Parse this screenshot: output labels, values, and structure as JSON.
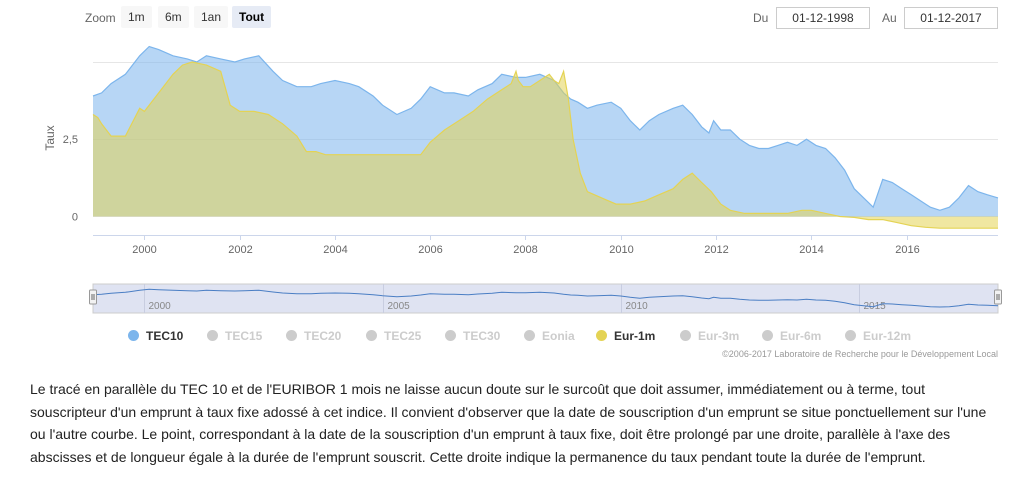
{
  "toolbar": {
    "zoom_label": "Zoom",
    "zoom_buttons": [
      {
        "label": "1m",
        "active": false
      },
      {
        "label": "6m",
        "active": false
      },
      {
        "label": "1an",
        "active": false
      },
      {
        "label": "Tout",
        "active": true
      }
    ],
    "from_label": "Du",
    "from_value": "01-12-1998",
    "to_label": "Au",
    "to_value": "01-12-2017"
  },
  "chart_data": {
    "type": "area",
    "title": "",
    "xlabel": "",
    "ylabel": "Taux",
    "xlim": [
      1998.92,
      2017.92
    ],
    "ylim": [
      -0.6,
      5.55
    ],
    "yticks": [
      0,
      2.5
    ],
    "ytick_labels": [
      "0",
      "2,5"
    ],
    "xticks": [
      2000,
      2002,
      2004,
      2006,
      2008,
      2010,
      2012,
      2014,
      2016
    ],
    "grid": true,
    "series": [
      {
        "name": "TEC10",
        "color": "#7cb5ec",
        "x": [
          1998.92,
          1999.1,
          1999.3,
          1999.6,
          1999.9,
          2000.1,
          2000.3,
          2000.6,
          2000.9,
          2001.1,
          2001.3,
          2001.6,
          2001.9,
          2002.1,
          2002.4,
          2002.7,
          2002.9,
          2003.2,
          2003.5,
          2003.7,
          2004.0,
          2004.3,
          2004.5,
          2004.8,
          2005.0,
          2005.3,
          2005.6,
          2005.8,
          2006.0,
          2006.3,
          2006.5,
          2006.8,
          2007.0,
          2007.3,
          2007.5,
          2007.8,
          2008.0,
          2008.3,
          2008.6,
          2008.8,
          2008.95,
          2009.1,
          2009.3,
          2009.5,
          2009.8,
          2010.0,
          2010.2,
          2010.4,
          2010.6,
          2010.8,
          2011.1,
          2011.3,
          2011.5,
          2011.7,
          2011.85,
          2011.95,
          2012.1,
          2012.3,
          2012.5,
          2012.7,
          2012.9,
          2013.1,
          2013.3,
          2013.5,
          2013.7,
          2013.9,
          2014.1,
          2014.3,
          2014.5,
          2014.7,
          2014.9,
          2015.1,
          2015.3,
          2015.5,
          2015.7,
          2015.9,
          2016.1,
          2016.3,
          2016.5,
          2016.7,
          2016.9,
          2017.1,
          2017.3,
          2017.5,
          2017.7,
          2017.92
        ],
        "values": [
          3.9,
          4.0,
          4.3,
          4.6,
          5.2,
          5.5,
          5.4,
          5.2,
          5.1,
          5.0,
          5.2,
          5.1,
          5.0,
          5.1,
          5.2,
          4.7,
          4.4,
          4.2,
          4.2,
          4.3,
          4.4,
          4.3,
          4.2,
          3.9,
          3.6,
          3.3,
          3.5,
          3.8,
          4.2,
          4.0,
          4.0,
          3.9,
          4.1,
          4.3,
          4.6,
          4.5,
          4.5,
          4.6,
          4.4,
          4.0,
          3.8,
          3.7,
          3.5,
          3.6,
          3.7,
          3.5,
          3.1,
          2.8,
          3.1,
          3.3,
          3.5,
          3.6,
          3.3,
          2.9,
          2.7,
          3.1,
          2.8,
          2.8,
          2.5,
          2.3,
          2.2,
          2.2,
          2.3,
          2.4,
          2.3,
          2.5,
          2.3,
          2.2,
          1.9,
          1.5,
          0.9,
          0.6,
          0.3,
          1.2,
          1.1,
          0.9,
          0.7,
          0.5,
          0.3,
          0.2,
          0.3,
          0.6,
          1.0,
          0.8,
          0.7,
          0.6
        ]
      },
      {
        "name": "Eur-1m",
        "color": "#e4d354",
        "x": [
          1998.92,
          1999.02,
          1999.1,
          1999.3,
          1999.6,
          1999.8,
          1999.9,
          2000.0,
          2000.3,
          2000.6,
          2000.8,
          2001.0,
          2001.3,
          2001.6,
          2001.8,
          2002.0,
          2002.3,
          2002.6,
          2002.9,
          2003.2,
          2003.4,
          2003.6,
          2003.8,
          2004.0,
          2004.5,
          2005.0,
          2005.5,
          2005.8,
          2006.0,
          2006.3,
          2006.6,
          2006.9,
          2007.2,
          2007.5,
          2007.7,
          2007.8,
          2007.85,
          2007.95,
          2008.1,
          2008.3,
          2008.5,
          2008.6,
          2008.7,
          2008.8,
          2008.9,
          2009.0,
          2009.15,
          2009.3,
          2009.6,
          2009.9,
          2010.2,
          2010.5,
          2010.8,
          2011.1,
          2011.3,
          2011.5,
          2011.7,
          2011.9,
          2012.1,
          2012.3,
          2012.6,
          2012.9,
          2013.2,
          2013.5,
          2013.8,
          2014.0,
          2014.3,
          2014.6,
          2014.9,
          2015.2,
          2015.5,
          2015.8,
          2016.1,
          2016.4,
          2016.7,
          2017.0,
          2017.3,
          2017.6,
          2017.92
        ],
        "values": [
          3.3,
          3.2,
          3.0,
          2.6,
          2.6,
          3.2,
          3.5,
          3.4,
          4.0,
          4.6,
          4.9,
          5.0,
          4.9,
          4.7,
          3.6,
          3.4,
          3.4,
          3.3,
          3.0,
          2.6,
          2.1,
          2.1,
          2.0,
          2.0,
          2.0,
          2.0,
          2.0,
          2.0,
          2.4,
          2.8,
          3.1,
          3.4,
          3.8,
          4.1,
          4.3,
          4.7,
          4.4,
          4.2,
          4.2,
          4.4,
          4.6,
          4.4,
          4.3,
          4.7,
          3.8,
          2.5,
          1.4,
          0.8,
          0.6,
          0.4,
          0.4,
          0.5,
          0.7,
          0.9,
          1.2,
          1.4,
          1.1,
          0.8,
          0.4,
          0.2,
          0.1,
          0.1,
          0.1,
          0.1,
          0.2,
          0.2,
          0.1,
          0.0,
          -0.03,
          -0.1,
          -0.1,
          -0.2,
          -0.3,
          -0.35,
          -0.38,
          -0.38,
          -0.38,
          -0.38,
          -0.38
        ]
      }
    ]
  },
  "navigator": {
    "year_labels": [
      "2000",
      "2005",
      "2010",
      "2015"
    ]
  },
  "legend": [
    {
      "label": "TEC10",
      "color": "#7cb5ec",
      "active": true
    },
    {
      "label": "TEC15",
      "color": "#cccccc",
      "active": false
    },
    {
      "label": "TEC20",
      "color": "#cccccc",
      "active": false
    },
    {
      "label": "TEC25",
      "color": "#cccccc",
      "active": false
    },
    {
      "label": "TEC30",
      "color": "#cccccc",
      "active": false
    },
    {
      "label": "Eonia",
      "color": "#cccccc",
      "active": false
    },
    {
      "label": "Eur-1m",
      "color": "#e4d354",
      "active": true
    },
    {
      "label": "Eur-3m",
      "color": "#cccccc",
      "active": false
    },
    {
      "label": "Eur-6m",
      "color": "#cccccc",
      "active": false
    },
    {
      "label": "Eur-12m",
      "color": "#cccccc",
      "active": false
    }
  ],
  "credits": "©2006-2017 Laboratoire de Recherche pour le Développement Local",
  "paragraph": "Le tracé en parallèle du TEC 10 et de l'EURIBOR 1 mois ne laisse aucun doute sur le surcoût que doit assumer, immédiatement ou à terme, tout souscripteur d'un emprunt à taux fixe adossé à cet indice. Il convient d'observer que la date de souscription d'un emprunt se situe ponctuellement sur l'une ou l'autre courbe. Le point, correspondant à la date de la souscription d'un emprunt à taux fixe, doit être prolongé par une droite, parallèle à l'axe des abscisses et de longueur égale à la durée de l'emprunt souscrit. Cette droite indique la permanence du taux pendant toute la durée de l'emprunt."
}
